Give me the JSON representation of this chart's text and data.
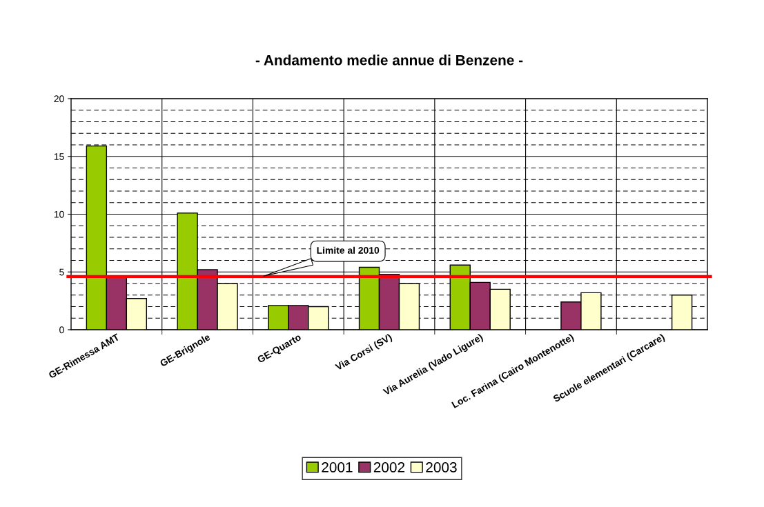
{
  "chart_data": {
    "type": "bar",
    "title": "- Andamento medie annue di Benzene -",
    "categories": [
      "GE-Rimessa AMT",
      "GE-Brignole",
      "GE-Quarto",
      "Via Corsi (SV)",
      "Via Aurelia (Vado Ligure)",
      "Loc. Farina (Cairo Montenotte)",
      "Scuole elementari (Carcare)"
    ],
    "series": [
      {
        "name": "2001",
        "color": "#99cc00",
        "values": [
          15.9,
          10.1,
          2.1,
          5.4,
          5.6,
          null,
          null
        ]
      },
      {
        "name": "2002",
        "color": "#993366",
        "values": [
          4.6,
          5.2,
          2.1,
          4.8,
          4.1,
          2.4,
          null
        ]
      },
      {
        "name": "2003",
        "color": "#ffffcc",
        "values": [
          2.7,
          4.0,
          2.0,
          4.0,
          3.5,
          3.2,
          3.0
        ]
      }
    ],
    "ylim": [
      0,
      20
    ],
    "yticks": [
      0,
      5,
      10,
      15,
      20
    ],
    "grid": true,
    "legend": "bottom",
    "ref_lines": [
      {
        "axis": "y",
        "value": 4.6,
        "label": "Limite al 2010",
        "color": "#ff0000"
      }
    ]
  }
}
